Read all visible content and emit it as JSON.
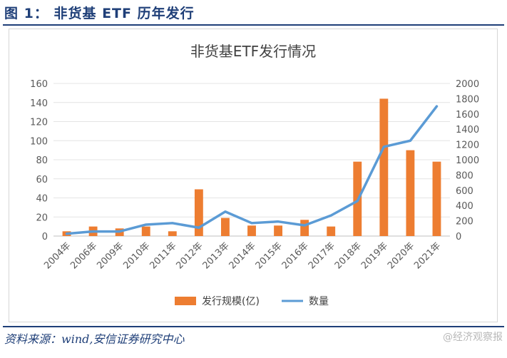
{
  "figure": {
    "title": "图 1：  非货基 ETF 历年发行",
    "source": "资料来源：wind,安信证券研究中心",
    "watermark": "@经济观察报"
  },
  "chart_data": {
    "type": "bar+line",
    "title": "非货基ETF发行情况",
    "categories": [
      "2004年",
      "2006年",
      "2009年",
      "2010年",
      "2011年",
      "2012年",
      "2013年",
      "2014年",
      "2015年",
      "2016年",
      "2017年",
      "2018年",
      "2019年",
      "2020年",
      "2021年"
    ],
    "series": [
      {
        "name": "发行规模(亿)",
        "type": "bar",
        "axis": "left",
        "color": "#ed7d31",
        "values": [
          5,
          10,
          8,
          10,
          5,
          49,
          19,
          11,
          11,
          17,
          10,
          78,
          144,
          90,
          78
        ]
      },
      {
        "name": "数量",
        "type": "line",
        "axis": "right",
        "color": "#5b9bd5",
        "values": [
          30,
          60,
          60,
          150,
          170,
          110,
          320,
          170,
          190,
          140,
          270,
          460,
          1170,
          1250,
          1700
        ]
      }
    ],
    "ylim_left": [
      0,
      160
    ],
    "yticks_left": [
      "0",
      "20",
      "40",
      "60",
      "80",
      "100",
      "120",
      "140",
      "160"
    ],
    "ylim_right": [
      0,
      2000
    ],
    "yticks_right": [
      "0",
      "200",
      "400",
      "600",
      "800",
      "1000",
      "1200",
      "1400",
      "1600",
      "1800",
      "2000"
    ],
    "grid": true,
    "legend_position": "bottom"
  }
}
